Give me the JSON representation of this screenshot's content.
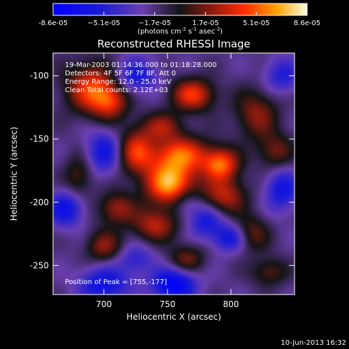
{
  "chart_data": {
    "type": "heatmap",
    "title": "Reconstructed RHESSI Image",
    "xlabel": "Heliocentric X (arcsec)",
    "ylabel": "Heliocentric Y (arcsec)",
    "xlim": [
      660,
      850
    ],
    "ylim": [
      -273,
      -82
    ],
    "xticks": [
      700,
      750,
      800
    ],
    "yticks": [
      -100,
      -150,
      -200,
      -250
    ],
    "colorbar": {
      "range": [
        -8.6e-05,
        8.6e-05
      ],
      "ticks": [
        "-8.6e-05",
        "−5.1e-05",
        "−1.7e-05",
        "1.7e-05",
        "5.1e-05",
        "8.6e-05"
      ],
      "unit_base": "(photons cm",
      "unit_sup1": "-2",
      "unit_mid": " s",
      "unit_sup2": "-1",
      "unit_mid2": " asec",
      "unit_sup3": "-2",
      "unit_end": ")"
    },
    "annotations": {
      "time": "19-Mar-2003 01:14:36.000 to 01:18:28.000",
      "detectors": "Detectors: 4F 5F 6F 7F 8F, Att 0",
      "energy": "Energy Range: 12.0 - 25.0 keV",
      "clean": "Clean     Total counts: 2.12E+03",
      "peak": "Position of Peak = [755,-177]"
    },
    "blobs": [
      {
        "x": 752,
        "y": -185,
        "v": 1.0,
        "sx": 14,
        "sy": 12
      },
      {
        "x": 760,
        "y": -162,
        "v": 0.75,
        "sx": 16,
        "sy": 10
      },
      {
        "x": 792,
        "y": -170,
        "v": 0.8,
        "sx": 10,
        "sy": 9
      },
      {
        "x": 795,
        "y": -195,
        "v": 0.55,
        "sx": 12,
        "sy": 10
      },
      {
        "x": 725,
        "y": -160,
        "v": 0.65,
        "sx": 10,
        "sy": 12
      },
      {
        "x": 690,
        "y": -110,
        "v": 0.7,
        "sx": 14,
        "sy": 14
      },
      {
        "x": 705,
        "y": -120,
        "v": 0.55,
        "sx": 10,
        "sy": 10
      },
      {
        "x": 770,
        "y": -115,
        "v": 0.7,
        "sx": 12,
        "sy": 9
      },
      {
        "x": 745,
        "y": -140,
        "v": 0.45,
        "sx": 12,
        "sy": 8
      },
      {
        "x": 820,
        "y": -130,
        "v": 0.45,
        "sx": 12,
        "sy": 14
      },
      {
        "x": 835,
        "y": -160,
        "v": 0.4,
        "sx": 10,
        "sy": 10
      },
      {
        "x": 710,
        "y": -205,
        "v": 0.5,
        "sx": 10,
        "sy": 9
      },
      {
        "x": 700,
        "y": -235,
        "v": 0.45,
        "sx": 10,
        "sy": 9
      },
      {
        "x": 740,
        "y": -218,
        "v": 0.55,
        "sx": 12,
        "sy": 9
      },
      {
        "x": 815,
        "y": -225,
        "v": 0.45,
        "sx": 10,
        "sy": 10
      },
      {
        "x": 765,
        "y": -245,
        "v": 0.4,
        "sx": 10,
        "sy": 8
      },
      {
        "x": 680,
        "y": -180,
        "v": 0.35,
        "sx": 8,
        "sy": 12
      },
      {
        "x": 830,
        "y": -255,
        "v": 0.35,
        "sx": 10,
        "sy": 8
      },
      {
        "x": 725,
        "y": -100,
        "v": -0.45,
        "sx": 12,
        "sy": 10
      },
      {
        "x": 700,
        "y": -160,
        "v": -0.5,
        "sx": 10,
        "sy": 12
      },
      {
        "x": 670,
        "y": -205,
        "v": -0.55,
        "sx": 10,
        "sy": 10
      },
      {
        "x": 700,
        "y": -265,
        "v": -0.55,
        "sx": 14,
        "sy": 10
      },
      {
        "x": 755,
        "y": -265,
        "v": -0.75,
        "sx": 12,
        "sy": 9
      },
      {
        "x": 780,
        "y": -215,
        "v": -0.45,
        "sx": 9,
        "sy": 9
      },
      {
        "x": 800,
        "y": -228,
        "v": -0.55,
        "sx": 10,
        "sy": 8
      },
      {
        "x": 840,
        "y": -190,
        "v": -0.5,
        "sx": 9,
        "sy": 12
      },
      {
        "x": 840,
        "y": -100,
        "v": -0.4,
        "sx": 10,
        "sy": 10
      },
      {
        "x": 765,
        "y": -200,
        "v": -0.3,
        "sx": 8,
        "sy": 8
      },
      {
        "x": 725,
        "y": -245,
        "v": -0.35,
        "sx": 10,
        "sy": 8
      }
    ]
  },
  "footer": {
    "timestamp": "10-Jun-2013 16:32"
  }
}
